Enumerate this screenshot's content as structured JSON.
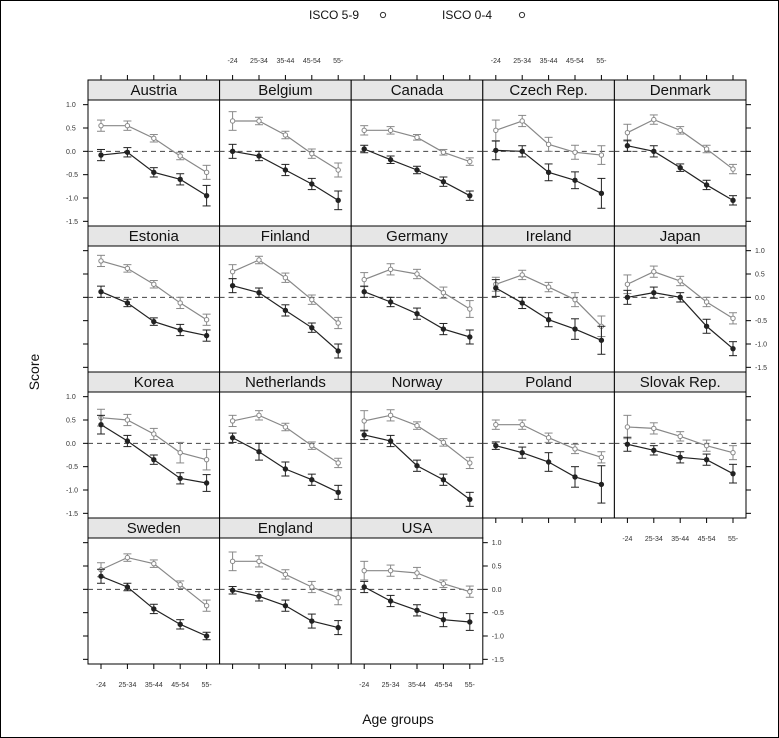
{
  "chart_data": {
    "type": "line",
    "legend": {
      "position": "top",
      "entries": [
        {
          "label": "ISCO 5-9",
          "marker": "open-circle"
        },
        {
          "label": "ISCO 0-4",
          "marker": "open-circle"
        }
      ]
    },
    "xlabel": "Age groups",
    "ylabel": "Score",
    "categories": [
      "-24",
      "25-34",
      "35-44",
      "45-54",
      "55-"
    ],
    "ylim": [
      -1.6,
      1.1
    ],
    "yticks": [
      1.0,
      0.5,
      0.0,
      -0.5,
      -1.0,
      -1.5
    ],
    "ytick_labels": [
      "1.0",
      "0.5",
      "0.0",
      "-0.5",
      "-1.0",
      "-1.5"
    ],
    "reference_line": 0,
    "colors": {
      "upper_line": "#888888",
      "lower_line": "#222222",
      "strip": "#e6e6e6",
      "reference": "#444444"
    },
    "panels": [
      {
        "name": "Austria",
        "upper": [
          0.55,
          0.55,
          0.28,
          -0.1,
          -0.45
        ],
        "upper_err": [
          0.12,
          0.1,
          0.08,
          0.08,
          0.15
        ],
        "lower": [
          -0.08,
          -0.02,
          -0.45,
          -0.6,
          -0.95
        ],
        "lower_err": [
          0.12,
          0.1,
          0.1,
          0.12,
          0.22
        ]
      },
      {
        "name": "Belgium",
        "upper": [
          0.65,
          0.65,
          0.35,
          -0.05,
          -0.4
        ],
        "upper_err": [
          0.2,
          0.08,
          0.08,
          0.1,
          0.15
        ],
        "lower": [
          0.0,
          -0.1,
          -0.4,
          -0.7,
          -1.05
        ],
        "lower_err": [
          0.15,
          0.1,
          0.12,
          0.12,
          0.2
        ]
      },
      {
        "name": "Canada",
        "upper": [
          0.45,
          0.45,
          0.3,
          -0.02,
          -0.22
        ],
        "upper_err": [
          0.1,
          0.08,
          0.06,
          0.06,
          0.08
        ],
        "lower": [
          0.05,
          -0.18,
          -0.4,
          -0.65,
          -0.95
        ],
        "lower_err": [
          0.08,
          0.08,
          0.08,
          0.1,
          0.1
        ]
      },
      {
        "name": "Czech Rep.",
        "upper": [
          0.45,
          0.65,
          0.15,
          -0.02,
          -0.08
        ],
        "upper_err": [
          0.22,
          0.12,
          0.15,
          0.15,
          0.2
        ],
        "lower": [
          0.02,
          0.0,
          -0.45,
          -0.62,
          -0.9
        ],
        "lower_err": [
          0.2,
          0.12,
          0.18,
          0.18,
          0.32
        ]
      },
      {
        "name": "Denmark",
        "upper": [
          0.4,
          0.68,
          0.45,
          0.05,
          -0.38
        ],
        "upper_err": [
          0.18,
          0.1,
          0.08,
          0.08,
          0.1
        ],
        "lower": [
          0.12,
          0.0,
          -0.35,
          -0.72,
          -1.05
        ],
        "lower_err": [
          0.12,
          0.12,
          0.08,
          0.1,
          0.1
        ]
      },
      {
        "name": "Estonia",
        "upper": [
          0.78,
          0.62,
          0.28,
          -0.12,
          -0.48
        ],
        "upper_err": [
          0.12,
          0.08,
          0.08,
          0.12,
          0.12
        ],
        "lower": [
          0.12,
          -0.12,
          -0.52,
          -0.7,
          -0.82
        ],
        "lower_err": [
          0.12,
          0.08,
          0.08,
          0.12,
          0.12
        ]
      },
      {
        "name": "Finland",
        "upper": [
          0.55,
          0.8,
          0.42,
          -0.05,
          -0.55
        ],
        "upper_err": [
          0.15,
          0.08,
          0.1,
          0.1,
          0.12
        ],
        "lower": [
          0.25,
          0.1,
          -0.28,
          -0.65,
          -1.15
        ],
        "lower_err": [
          0.15,
          0.1,
          0.12,
          0.1,
          0.15
        ]
      },
      {
        "name": "Germany",
        "upper": [
          0.38,
          0.6,
          0.5,
          0.1,
          -0.25
        ],
        "upper_err": [
          0.15,
          0.12,
          0.1,
          0.12,
          0.18
        ],
        "lower": [
          0.12,
          -0.1,
          -0.35,
          -0.68,
          -0.85
        ],
        "lower_err": [
          0.12,
          0.1,
          0.12,
          0.12,
          0.15
        ]
      },
      {
        "name": "Ireland",
        "upper": [
          0.28,
          0.48,
          0.22,
          -0.05,
          -0.62
        ],
        "upper_err": [
          0.15,
          0.1,
          0.1,
          0.15,
          0.22
        ],
        "lower": [
          0.2,
          -0.12,
          -0.48,
          -0.68,
          -0.92
        ],
        "lower_err": [
          0.18,
          0.12,
          0.15,
          0.22,
          0.3
        ]
      },
      {
        "name": "Japan",
        "upper": [
          0.28,
          0.55,
          0.35,
          -0.1,
          -0.45
        ],
        "upper_err": [
          0.2,
          0.12,
          0.1,
          0.1,
          0.12
        ],
        "lower": [
          0.0,
          0.1,
          0.0,
          -0.62,
          -1.1
        ],
        "lower_err": [
          0.15,
          0.12,
          0.1,
          0.15,
          0.15
        ]
      },
      {
        "name": "Korea",
        "upper": [
          0.55,
          0.5,
          0.2,
          -0.2,
          -0.35
        ],
        "upper_err": [
          0.18,
          0.12,
          0.12,
          0.22,
          0.22
        ],
        "lower": [
          0.4,
          0.05,
          -0.35,
          -0.75,
          -0.85
        ],
        "lower_err": [
          0.2,
          0.12,
          0.1,
          0.12,
          0.18
        ]
      },
      {
        "name": "Netherlands",
        "upper": [
          0.48,
          0.6,
          0.35,
          -0.05,
          -0.42
        ],
        "upper_err": [
          0.12,
          0.1,
          0.08,
          0.08,
          0.1
        ],
        "lower": [
          0.12,
          -0.18,
          -0.55,
          -0.78,
          -1.05
        ],
        "lower_err": [
          0.1,
          0.18,
          0.15,
          0.12,
          0.15
        ]
      },
      {
        "name": "Norway",
        "upper": [
          0.48,
          0.6,
          0.38,
          0.02,
          -0.42
        ],
        "upper_err": [
          0.22,
          0.12,
          0.08,
          0.08,
          0.12
        ],
        "lower": [
          0.18,
          0.05,
          -0.48,
          -0.78,
          -1.2
        ],
        "lower_err": [
          0.1,
          0.12,
          0.12,
          0.12,
          0.15
        ]
      },
      {
        "name": "Poland",
        "upper": [
          0.4,
          0.4,
          0.12,
          -0.12,
          -0.3
        ],
        "upper_err": [
          0.1,
          0.1,
          0.1,
          0.1,
          0.12
        ],
        "lower": [
          -0.05,
          -0.2,
          -0.4,
          -0.72,
          -0.88
        ],
        "lower_err": [
          0.08,
          0.12,
          0.2,
          0.22,
          0.4
        ]
      },
      {
        "name": "Slovak Rep.",
        "upper": [
          0.35,
          0.32,
          0.15,
          -0.05,
          -0.2
        ],
        "upper_err": [
          0.25,
          0.12,
          0.1,
          0.12,
          0.15
        ],
        "lower": [
          -0.02,
          -0.15,
          -0.3,
          -0.35,
          -0.65
        ],
        "lower_err": [
          0.15,
          0.1,
          0.12,
          0.12,
          0.2
        ]
      },
      {
        "name": "Sweden",
        "upper": [
          0.42,
          0.68,
          0.55,
          0.1,
          -0.35
        ],
        "upper_err": [
          0.15,
          0.08,
          0.08,
          0.08,
          0.12
        ],
        "lower": [
          0.28,
          0.05,
          -0.42,
          -0.75,
          -1.0
        ],
        "lower_err": [
          0.15,
          0.08,
          0.1,
          0.1,
          0.08
        ]
      },
      {
        "name": "England",
        "upper": [
          0.6,
          0.6,
          0.32,
          0.05,
          -0.18
        ],
        "upper_err": [
          0.2,
          0.12,
          0.1,
          0.12,
          0.15
        ],
        "lower": [
          -0.02,
          -0.15,
          -0.35,
          -0.68,
          -0.82
        ],
        "lower_err": [
          0.08,
          0.1,
          0.12,
          0.15,
          0.15
        ]
      },
      {
        "name": "USA",
        "upper": [
          0.4,
          0.4,
          0.35,
          0.12,
          -0.05
        ],
        "upper_err": [
          0.2,
          0.12,
          0.12,
          0.08,
          0.12
        ],
        "lower": [
          0.05,
          -0.25,
          -0.45,
          -0.65,
          -0.7
        ],
        "lower_err": [
          0.12,
          0.12,
          0.12,
          0.15,
          0.18
        ]
      }
    ]
  }
}
